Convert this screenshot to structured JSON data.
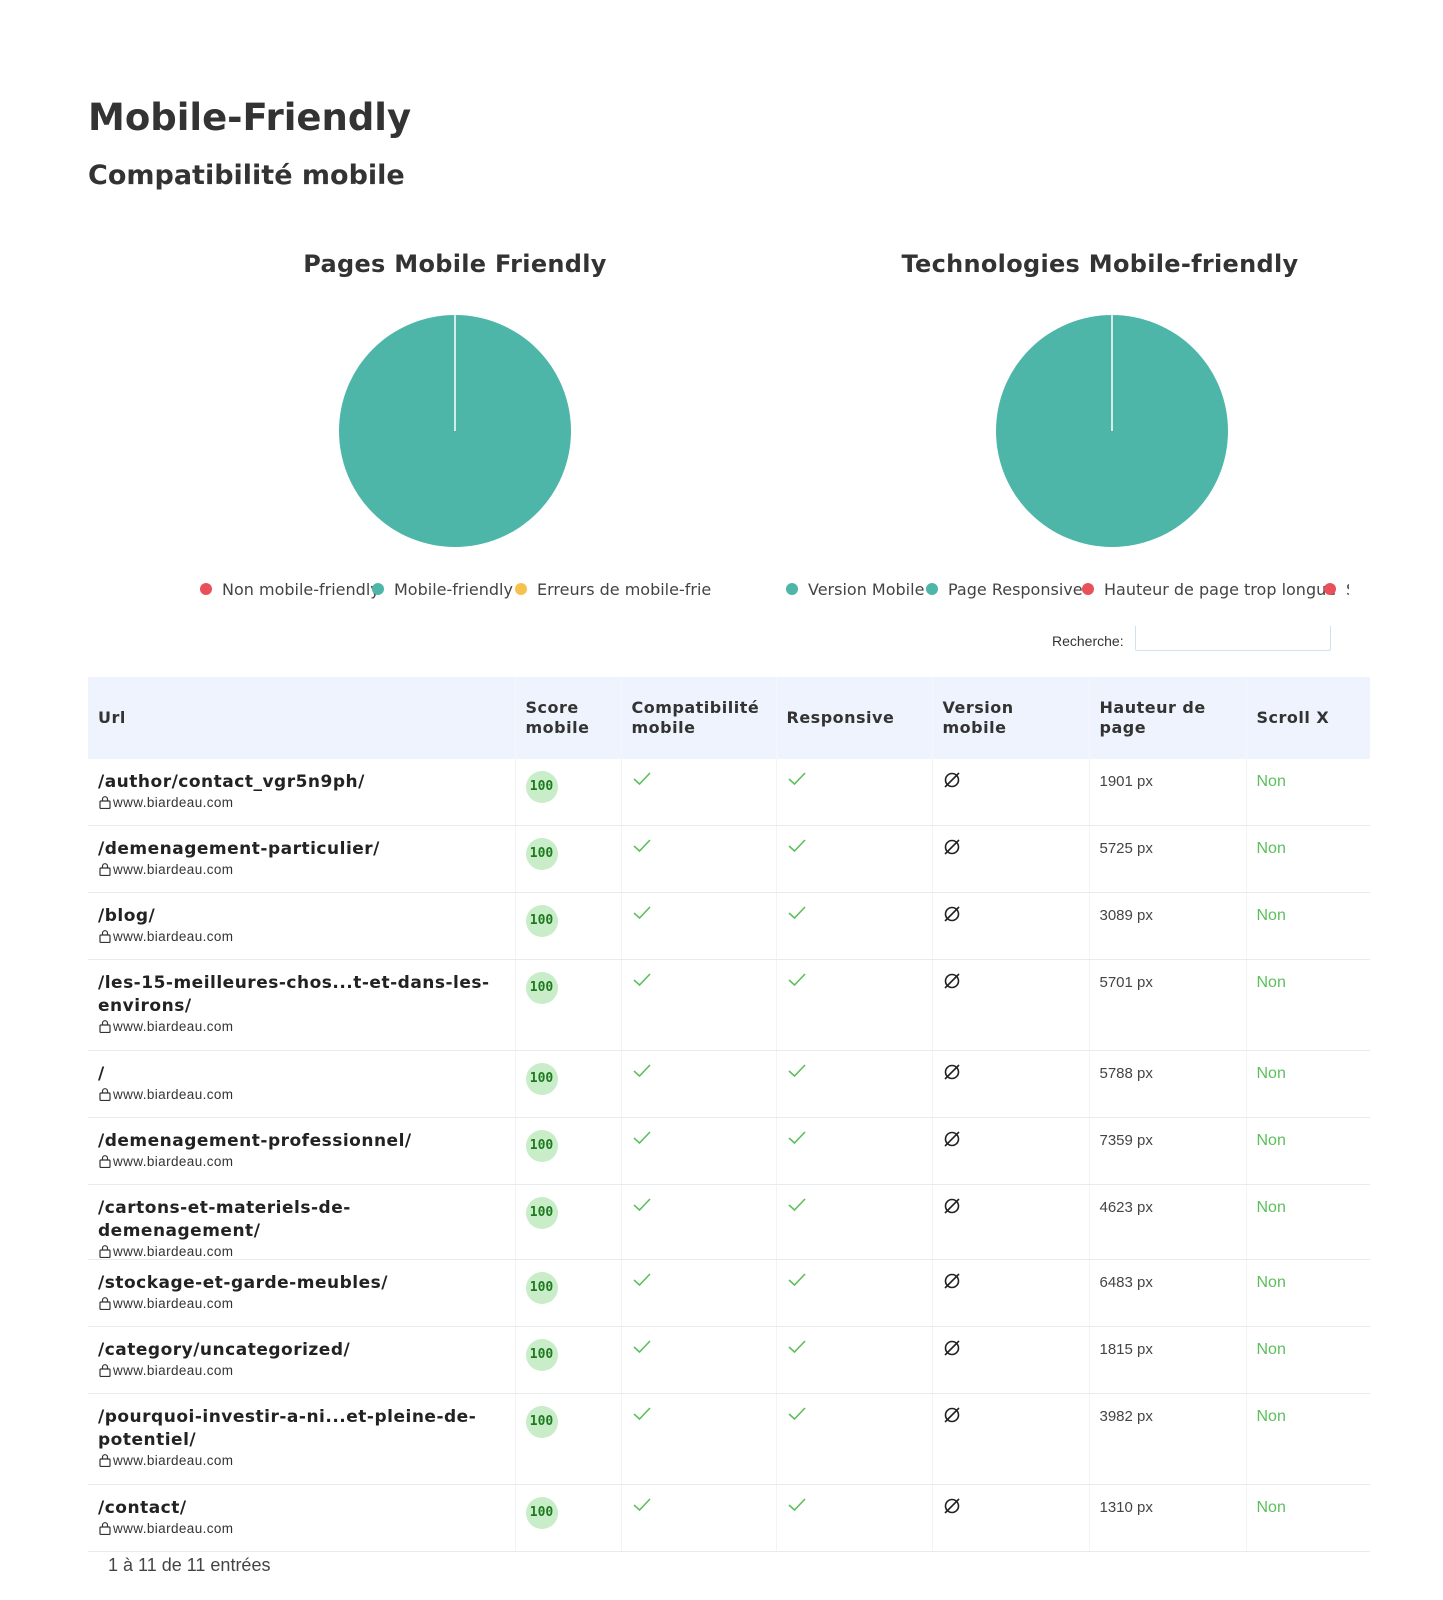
{
  "header": {
    "title": "Mobile-Friendly",
    "subtitle": "Compatibilité mobile"
  },
  "charts": {
    "colors": {
      "teal": "#4db6a8",
      "red": "#e8505b",
      "yellow": "#f6c24d"
    }
  },
  "chart_data": [
    {
      "type": "pie",
      "title": "Pages Mobile Friendly",
      "series": [
        {
          "name": "Non mobile-friendly",
          "value": 0,
          "color": "#e8505b"
        },
        {
          "name": "Mobile-friendly",
          "value": 11,
          "color": "#4db6a8"
        },
        {
          "name": "Erreurs de mobile-frie",
          "value": 0,
          "color": "#f6c24d"
        }
      ]
    },
    {
      "type": "pie",
      "title": "Technologies Mobile-friendly",
      "series": [
        {
          "name": "Version Mobile",
          "value": 0,
          "color": "#4db6a8"
        },
        {
          "name": "Page Responsive",
          "value": 11,
          "color": "#4db6a8"
        },
        {
          "name": "Hauteur de page trop longue",
          "value": 0,
          "color": "#e8505b"
        },
        {
          "name": "S",
          "value": 0,
          "color": "#e8505b"
        }
      ]
    }
  ],
  "search": {
    "label": "Recherche:",
    "value": ""
  },
  "table": {
    "headers": {
      "url": "Url",
      "score": "Score mobile",
      "compat": "Compatibilité mobile",
      "responsive": "Responsive",
      "version": "Version mobile",
      "height": "Hauteur de page",
      "scroll": "Scroll X"
    },
    "rows": [
      {
        "path": "/author/contact_vgr5n9ph/",
        "host": "www.biardeau.com",
        "score": "100",
        "height": "1901 px",
        "scroll": "Non"
      },
      {
        "path": "/demenagement-particulier/",
        "host": "www.biardeau.com",
        "score": "100",
        "height": "5725 px",
        "scroll": "Non"
      },
      {
        "path": "/blog/",
        "host": "www.biardeau.com",
        "score": "100",
        "height": "3089 px",
        "scroll": "Non"
      },
      {
        "path": "/les-15-meilleures-chos...t-et-dans-les-environs/",
        "host": "www.biardeau.com",
        "score": "100",
        "height": "5701 px",
        "scroll": "Non"
      },
      {
        "path": "/",
        "host": "www.biardeau.com",
        "score": "100",
        "height": "5788 px",
        "scroll": "Non"
      },
      {
        "path": "/demenagement-professionnel/",
        "host": "www.biardeau.com",
        "score": "100",
        "height": "7359 px",
        "scroll": "Non"
      },
      {
        "path": "/cartons-et-materiels-de-demenagement/",
        "host": "www.biardeau.com",
        "score": "100",
        "height": "4623 px",
        "scroll": "Non"
      },
      {
        "path": "/stockage-et-garde-meubles/",
        "host": "www.biardeau.com",
        "score": "100",
        "height": "6483 px",
        "scroll": "Non"
      },
      {
        "path": "/category/uncategorized/",
        "host": "www.biardeau.com",
        "score": "100",
        "height": "1815 px",
        "scroll": "Non"
      },
      {
        "path": "/pourquoi-investir-a-ni...et-pleine-de-potentiel/",
        "host": "www.biardeau.com",
        "score": "100",
        "height": "3982 px",
        "scroll": "Non"
      },
      {
        "path": "/contact/",
        "host": "www.biardeau.com",
        "score": "100",
        "height": "1310 px",
        "scroll": "Non"
      }
    ]
  },
  "footer": {
    "entries": "1 à 11 de 11 entrées"
  }
}
